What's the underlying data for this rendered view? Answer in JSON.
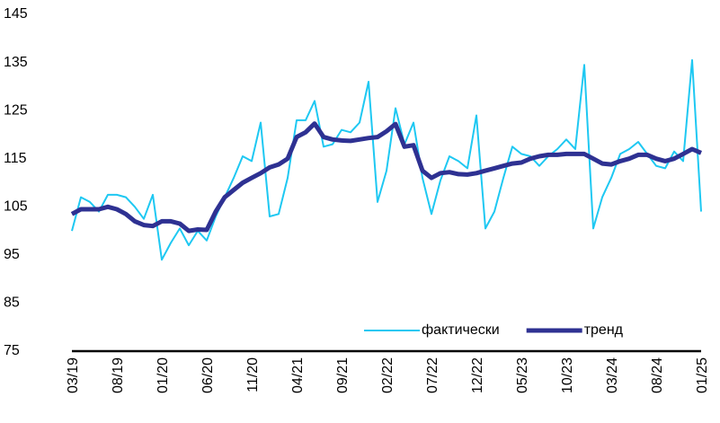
{
  "chart_data": {
    "type": "line",
    "categories": [
      "03/19",
      null,
      null,
      null,
      null,
      "08/19",
      null,
      null,
      null,
      null,
      "01/20",
      null,
      null,
      null,
      null,
      "06/20",
      null,
      null,
      null,
      null,
      "11/20",
      null,
      null,
      null,
      null,
      "04/21",
      null,
      null,
      null,
      null,
      "09/21",
      null,
      null,
      null,
      null,
      "02/22",
      null,
      null,
      null,
      null,
      "07/22",
      null,
      null,
      null,
      null,
      "12/22",
      null,
      null,
      null,
      null,
      "05/23",
      null,
      null,
      null,
      null,
      "10/23",
      null,
      null,
      null,
      null,
      "03/24",
      null,
      null,
      null,
      null,
      "08/24",
      null,
      null,
      null,
      null,
      "01/25"
    ],
    "series": [
      {
        "name": "фактически",
        "color": "#1ec8f2",
        "values": [
          100,
          107,
          106,
          104,
          107.5,
          107.5,
          107,
          105,
          102.5,
          107.5,
          94,
          97.5,
          100.5,
          97,
          100,
          98,
          103,
          107,
          111,
          115.5,
          114.5,
          122.5,
          103,
          103.5,
          111,
          123,
          123,
          127,
          117.5,
          118,
          121,
          120.5,
          122.5,
          131,
          106,
          112.5,
          125.5,
          118,
          122.5,
          111,
          103.5,
          110.5,
          115.5,
          114.5,
          113,
          124,
          100.5,
          104,
          111,
          117.5,
          116,
          115.5,
          113.5,
          115.5,
          117,
          119,
          117,
          134.5,
          100.5,
          107,
          111,
          116,
          117,
          118.5,
          116,
          113.5,
          113,
          116.5,
          114.5,
          135.5,
          104
        ]
      },
      {
        "name": "тренд",
        "color": "#2e3192",
        "values": [
          103.5,
          104.5,
          104.5,
          104.5,
          105,
          104.5,
          103.5,
          102,
          101.2,
          101,
          102,
          102,
          101.5,
          100,
          100.3,
          100.2,
          104,
          107,
          108.5,
          110,
          111,
          112,
          113.2,
          113.8,
          115,
          119.5,
          120.5,
          122.3,
          119.5,
          119,
          118.8,
          118.7,
          119,
          119.3,
          119.5,
          120.7,
          122.2,
          117.5,
          117.8,
          112.5,
          111,
          112,
          112.2,
          111.8,
          111.7,
          112,
          112.5,
          113,
          113.5,
          114,
          114.2,
          115,
          115.5,
          115.8,
          115.8,
          116,
          116,
          116,
          115,
          114,
          113.8,
          114.5,
          115,
          115.8,
          115.8,
          115,
          114.5,
          115,
          116,
          117,
          116.2
        ]
      }
    ],
    "ylim": [
      75,
      145
    ],
    "yticks": [
      75,
      85,
      95,
      105,
      115,
      125,
      135,
      145
    ],
    "grid": false,
    "legend": "lower right"
  }
}
